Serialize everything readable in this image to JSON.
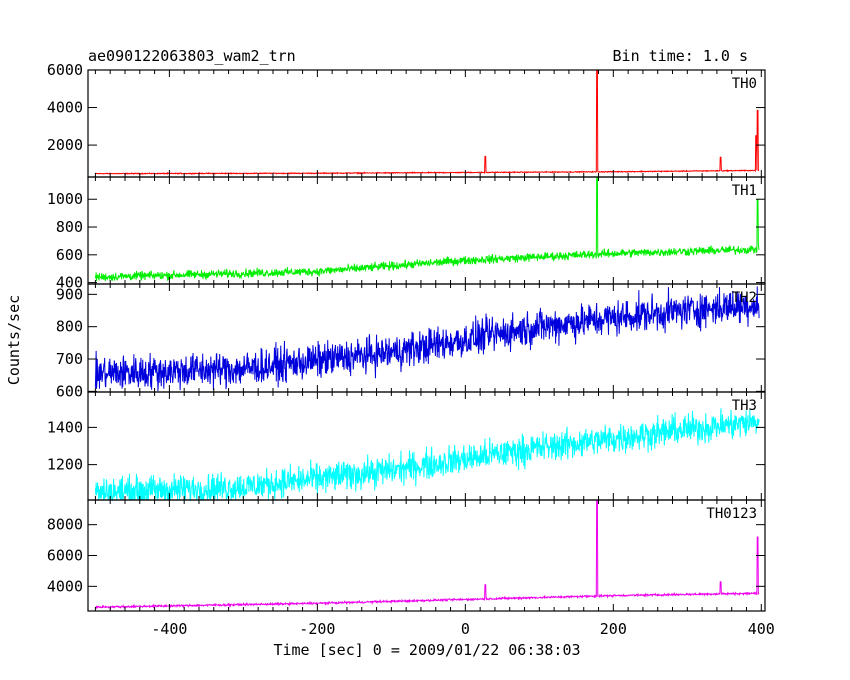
{
  "header": {
    "title": "ae090122063803_wam2_trn",
    "bin_time": "Bin time: 1.0 s"
  },
  "chart_data": {
    "type": "line",
    "xlabel": "Time [sec] 0 = 2009/01/22 06:38:03",
    "ylabel": "Counts/sec",
    "xlim": [
      -510,
      405
    ],
    "xticks": [
      -400,
      -200,
      0,
      200,
      400
    ],
    "x_start": -500,
    "x_end": 397,
    "panels": [
      {
        "name": "TH0",
        "color": "#ff0000",
        "ylim": [
          300,
          6000
        ],
        "yticks": [
          2000,
          4000,
          6000
        ],
        "baseline": [
          [
            -500,
            480
          ],
          [
            -200,
            500
          ],
          [
            0,
            540
          ],
          [
            200,
            580
          ],
          [
            397,
            650
          ]
        ],
        "noise": 35,
        "spikes": [
          [
            27,
            1400
          ],
          [
            178,
            6000
          ],
          [
            345,
            1350
          ],
          [
            393,
            2500
          ],
          [
            395,
            3850
          ]
        ]
      },
      {
        "name": "TH1",
        "color": "#00ee00",
        "ylim": [
          390,
          1160
        ],
        "yticks": [
          400,
          600,
          800,
          1000
        ],
        "baseline": [
          [
            -500,
            440
          ],
          [
            -200,
            480
          ],
          [
            0,
            560
          ],
          [
            200,
            610
          ],
          [
            397,
            640
          ]
        ],
        "noise": 45,
        "spikes": [
          [
            178,
            1160
          ],
          [
            395,
            1000
          ]
        ]
      },
      {
        "name": "TH2",
        "color": "#0000dd",
        "ylim": [
          598,
          932
        ],
        "yticks": [
          600,
          700,
          800,
          900
        ],
        "baseline": [
          [
            -500,
            655
          ],
          [
            -300,
            670
          ],
          [
            -100,
            720
          ],
          [
            100,
            800
          ],
          [
            250,
            840
          ],
          [
            397,
            870
          ]
        ],
        "noise": 80,
        "spikes": []
      },
      {
        "name": "TH3",
        "color": "#00ffff",
        "ylim": [
          1010,
          1590
        ],
        "yticks": [
          1200,
          1400
        ],
        "baseline": [
          [
            -500,
            1050
          ],
          [
            -300,
            1080
          ],
          [
            -100,
            1170
          ],
          [
            100,
            1290
          ],
          [
            300,
            1390
          ],
          [
            397,
            1430
          ]
        ],
        "noise": 120,
        "spikes": []
      },
      {
        "name": "TH0123",
        "color": "#ee00ee",
        "ylim": [
          2400,
          9600
        ],
        "yticks": [
          4000,
          6000,
          8000
        ],
        "baseline": [
          [
            -500,
            2650
          ],
          [
            -200,
            2900
          ],
          [
            0,
            3150
          ],
          [
            200,
            3400
          ],
          [
            397,
            3550
          ]
        ],
        "noise": 90,
        "spikes": [
          [
            27,
            4100
          ],
          [
            178,
            9600
          ],
          [
            345,
            4300
          ],
          [
            395,
            7200
          ]
        ]
      }
    ]
  }
}
